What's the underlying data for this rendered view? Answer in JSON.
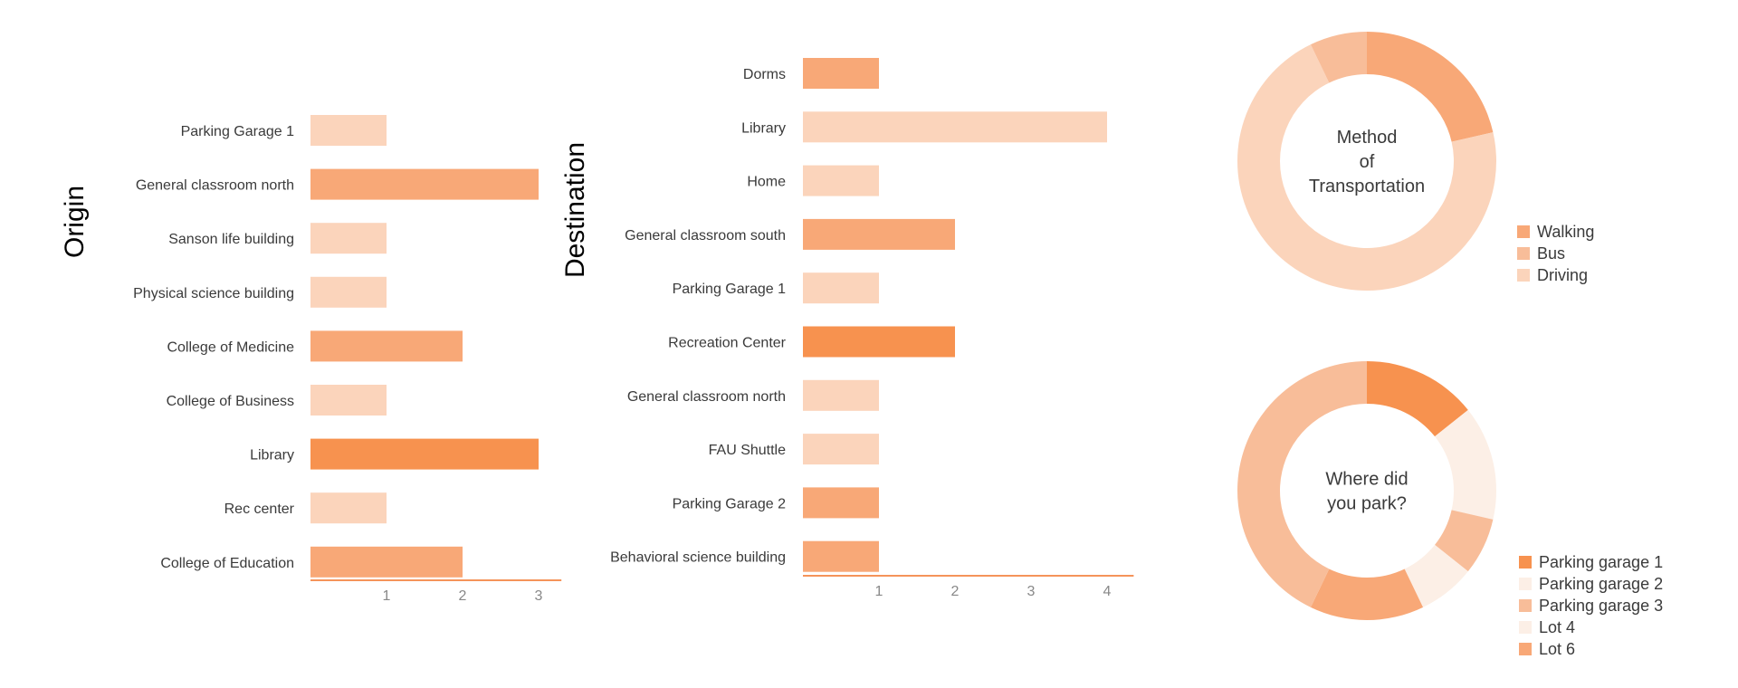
{
  "colors": {
    "dark": "#f7924f",
    "medium": "#f8a877",
    "light": "#fbd4bb",
    "lighter": "#f8bd99",
    "verylight": "#fcefe6",
    "axis": "#f5945a",
    "text": "#3a3a3a",
    "tick": "#888888"
  },
  "chart_data": [
    {
      "id": "origin",
      "type": "bar",
      "orientation": "horizontal",
      "title": "Origin",
      "categories": [
        "Parking Garage 1",
        "General classroom north",
        "Sanson life building",
        "Physical science building",
        "College of Medicine",
        "College of Business",
        "Library",
        "Rec center",
        "College of Education"
      ],
      "values": [
        1,
        3,
        1,
        1,
        2,
        1,
        3,
        1,
        2
      ],
      "bar_colors": [
        "light",
        "medium",
        "light",
        "light",
        "medium",
        "light",
        "dark",
        "light",
        "medium"
      ],
      "xticks": [
        1,
        2,
        3
      ],
      "xlim": [
        0,
        3.3
      ]
    },
    {
      "id": "destination",
      "type": "bar",
      "orientation": "horizontal",
      "title": "Destination",
      "categories": [
        "Dorms",
        "Library",
        "Home",
        "General classroom south",
        "Parking Garage 1",
        "Recreation Center",
        "General classroom north",
        "FAU Shuttle",
        "Parking Garage 2",
        "Behavioral science building"
      ],
      "values": [
        1,
        4,
        1,
        2,
        1,
        2,
        1,
        1,
        1,
        1
      ],
      "bar_colors": [
        "medium",
        "light",
        "light",
        "medium",
        "light",
        "dark",
        "light",
        "light",
        "medium",
        "medium"
      ],
      "xticks": [
        1,
        2,
        3,
        4
      ],
      "xlim": [
        0,
        4.35
      ]
    },
    {
      "id": "transport",
      "type": "pie",
      "donut": true,
      "center_label": [
        "Method",
        "of",
        "Transportation"
      ],
      "labels": [
        "Walking",
        "Bus",
        "Driving"
      ],
      "values": [
        3,
        1,
        10
      ],
      "slice_colors": [
        "medium",
        "lighter",
        "light"
      ],
      "slice_order": [
        "Walking",
        "Driving",
        "Bus"
      ]
    },
    {
      "id": "parking",
      "type": "pie",
      "donut": true,
      "center_label": [
        "Where did",
        "you park?"
      ],
      "labels": [
        "Parking garage 1",
        "Parking garage 2",
        "Parking garage 3",
        "Lot 4",
        "Lot 6"
      ],
      "values": [
        2,
        2,
        1,
        1,
        2
      ],
      "slice_colors": [
        "dark",
        "verylight",
        "lighter",
        "verylight",
        "medium"
      ],
      "slice_order": [
        "Parking garage 1",
        "Parking garage 2",
        "Parking garage 3",
        "Lot 4",
        "Lot 6",
        "other"
      ],
      "other_value": 6,
      "other_color": "lighter"
    }
  ]
}
